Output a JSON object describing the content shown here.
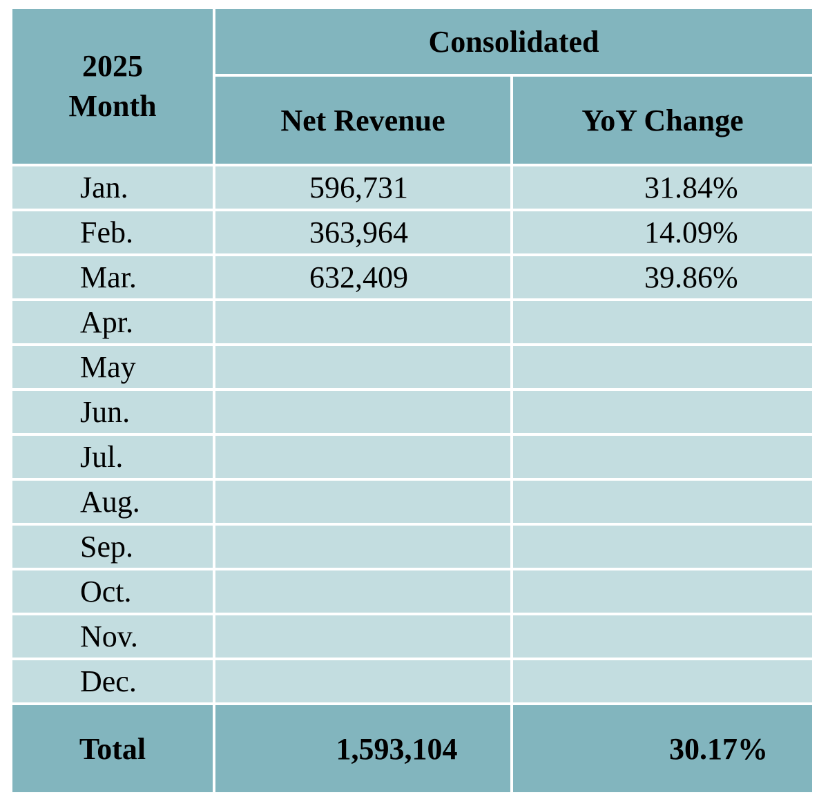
{
  "chart_data": {
    "type": "table",
    "header": {
      "year": "2025",
      "month_label": "Month",
      "group_label": "Consolidated",
      "columns": [
        "Net Revenue",
        "YoY Change"
      ]
    },
    "rows": [
      {
        "month": "Jan.",
        "net_revenue": "596,731",
        "yoy_change": "31.84%"
      },
      {
        "month": "Feb.",
        "net_revenue": "363,964",
        "yoy_change": "14.09%"
      },
      {
        "month": "Mar.",
        "net_revenue": "632,409",
        "yoy_change": "39.86%"
      },
      {
        "month": "Apr.",
        "net_revenue": "",
        "yoy_change": ""
      },
      {
        "month": "May",
        "net_revenue": "",
        "yoy_change": ""
      },
      {
        "month": "Jun.",
        "net_revenue": "",
        "yoy_change": ""
      },
      {
        "month": "Jul.",
        "net_revenue": "",
        "yoy_change": ""
      },
      {
        "month": "Aug.",
        "net_revenue": "",
        "yoy_change": ""
      },
      {
        "month": "Sep.",
        "net_revenue": "",
        "yoy_change": ""
      },
      {
        "month": "Oct.",
        "net_revenue": "",
        "yoy_change": ""
      },
      {
        "month": "Nov.",
        "net_revenue": "",
        "yoy_change": ""
      },
      {
        "month": "Dec.",
        "net_revenue": "",
        "yoy_change": ""
      }
    ],
    "total": {
      "label": "Total",
      "net_revenue": "1,593,104",
      "yoy_change": "30.17%"
    }
  },
  "colors": {
    "header_bg": "#82b5be",
    "row_bg": "#c3dde0",
    "grid": "#ffffff"
  }
}
